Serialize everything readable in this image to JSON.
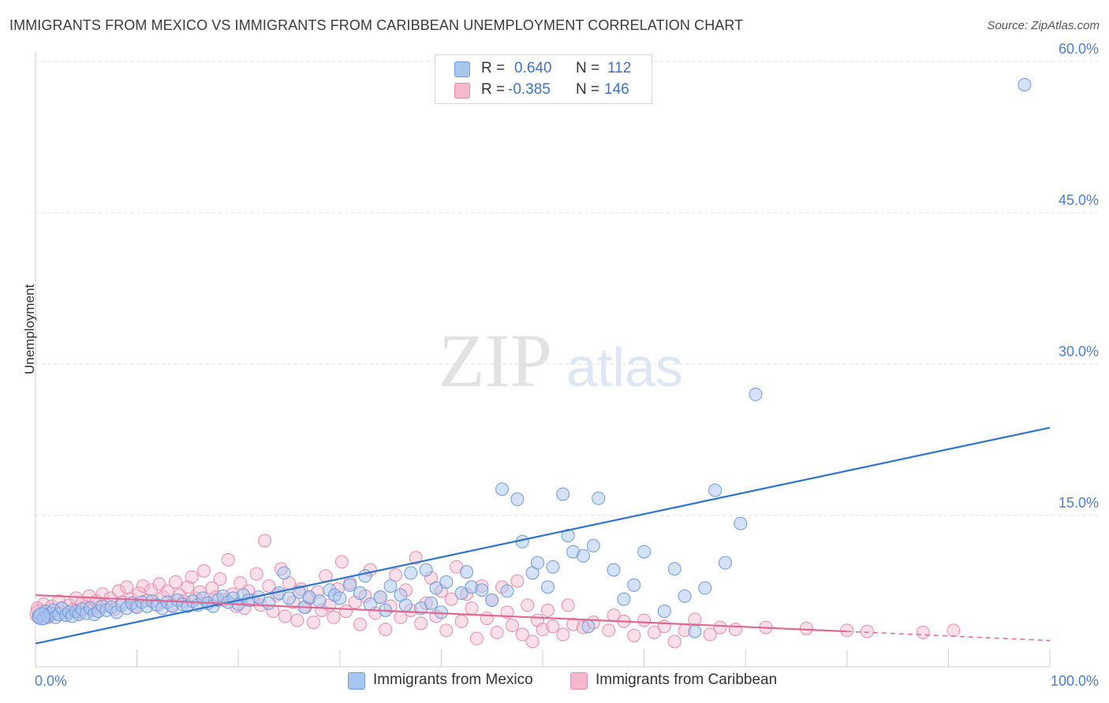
{
  "title": "IMMIGRANTS FROM MEXICO VS IMMIGRANTS FROM CARIBBEAN UNEMPLOYMENT CORRELATION CHART",
  "source": "Source: ZipAtlas.com",
  "watermark": {
    "zip": "ZIP",
    "atlas": "atlas"
  },
  "legend": {
    "mexico": {
      "r_label": "R =",
      "r_value": "0.640",
      "n_label": "N =",
      "n_value": "112",
      "color": "#a9c6ef"
    },
    "caribbean": {
      "r_label": "R =",
      "r_value": "-0.385",
      "n_label": "N =",
      "n_value": "146",
      "color": "#f6b8cc"
    }
  },
  "bottom_legend": {
    "mexico": "Immigrants from Mexico",
    "caribbean": "Immigrants from Caribbean"
  },
  "colors": {
    "mexico_fill": "#a9c6ef",
    "mexico_line": "#2f73d0",
    "caribbean_fill": "#f6b8cc",
    "caribbean_line": "#e06890",
    "axis_text": "#4a7fd0"
  },
  "chart_data": {
    "type": "scatter",
    "title": "IMMIGRANTS FROM MEXICO VS IMMIGRANTS FROM CARIBBEAN UNEMPLOYMENT CORRELATION CHART",
    "xlabel": "",
    "ylabel": "Unemployment",
    "xlim": [
      0,
      100
    ],
    "ylim": [
      0,
      60
    ],
    "x_tick_labels": [
      "0.0%",
      "100.0%"
    ],
    "y_ticks": [
      15,
      30,
      45,
      60
    ],
    "y_tick_labels": [
      "15.0%",
      "30.0%",
      "45.0%",
      "60.0%"
    ],
    "series": [
      {
        "name": "Immigrants from Mexico",
        "trend": {
          "x": [
            0,
            100
          ],
          "y": [
            2.3,
            23.7
          ]
        },
        "points": [
          [
            0.3,
            5.0
          ],
          [
            0.5,
            5.2
          ],
          [
            0.8,
            4.8
          ],
          [
            1.0,
            5.5
          ],
          [
            1.2,
            5.0
          ],
          [
            1.5,
            5.3
          ],
          [
            1.8,
            5.6
          ],
          [
            2.0,
            4.9
          ],
          [
            2.3,
            5.2
          ],
          [
            2.6,
            5.8
          ],
          [
            3.0,
            5.1
          ],
          [
            3.3,
            5.4
          ],
          [
            3.6,
            5.0
          ],
          [
            4.0,
            5.5
          ],
          [
            4.3,
            5.2
          ],
          [
            4.6,
            5.7
          ],
          [
            5.0,
            5.3
          ],
          [
            5.4,
            5.8
          ],
          [
            5.8,
            5.2
          ],
          [
            6.2,
            5.5
          ],
          [
            6.6,
            6.0
          ],
          [
            7.0,
            5.6
          ],
          [
            7.5,
            5.9
          ],
          [
            8.0,
            5.4
          ],
          [
            8.5,
            6.1
          ],
          [
            9.0,
            5.8
          ],
          [
            9.5,
            6.3
          ],
          [
            10.0,
            5.9
          ],
          [
            10.5,
            6.4
          ],
          [
            11.0,
            6.0
          ],
          [
            11.5,
            6.5
          ],
          [
            12.0,
            6.1
          ],
          [
            12.5,
            5.8
          ],
          [
            13.0,
            6.4
          ],
          [
            13.5,
            6.0
          ],
          [
            14.0,
            6.6
          ],
          [
            14.5,
            6.2
          ],
          [
            15.0,
            6.0
          ],
          [
            15.5,
            6.5
          ],
          [
            16.0,
            6.1
          ],
          [
            16.5,
            6.8
          ],
          [
            17.0,
            6.3
          ],
          [
            17.5,
            6.0
          ],
          [
            18.0,
            6.6
          ],
          [
            18.5,
            7.0
          ],
          [
            19.0,
            6.4
          ],
          [
            19.5,
            6.8
          ],
          [
            20.0,
            6.2
          ],
          [
            20.5,
            7.1
          ],
          [
            21.0,
            6.6
          ],
          [
            22.0,
            6.9
          ],
          [
            23.0,
            6.3
          ],
          [
            24.0,
            7.3
          ],
          [
            24.5,
            9.3
          ],
          [
            25.0,
            6.8
          ],
          [
            26.0,
            7.4
          ],
          [
            26.5,
            5.9
          ],
          [
            27.0,
            6.9
          ],
          [
            28.0,
            6.5
          ],
          [
            29.0,
            7.6
          ],
          [
            29.5,
            7.1
          ],
          [
            30.0,
            6.8
          ],
          [
            31.0,
            8.1
          ],
          [
            32.0,
            7.3
          ],
          [
            32.5,
            9.0
          ],
          [
            33.0,
            6.2
          ],
          [
            34.0,
            6.9
          ],
          [
            34.5,
            5.6
          ],
          [
            35.0,
            8.0
          ],
          [
            36.0,
            7.1
          ],
          [
            36.5,
            6.1
          ],
          [
            37.0,
            9.3
          ],
          [
            38.0,
            5.8
          ],
          [
            38.5,
            9.6
          ],
          [
            39.0,
            6.3
          ],
          [
            39.5,
            7.8
          ],
          [
            40.0,
            5.4
          ],
          [
            40.5,
            8.4
          ],
          [
            42.0,
            7.3
          ],
          [
            42.5,
            9.4
          ],
          [
            43.0,
            7.9
          ],
          [
            44.0,
            7.6
          ],
          [
            45.0,
            6.6
          ],
          [
            46.0,
            17.6
          ],
          [
            46.5,
            7.5
          ],
          [
            47.5,
            16.6
          ],
          [
            48.0,
            12.4
          ],
          [
            49.0,
            9.3
          ],
          [
            49.5,
            10.3
          ],
          [
            50.5,
            7.9
          ],
          [
            51.0,
            9.9
          ],
          [
            52.0,
            17.1
          ],
          [
            52.5,
            13.0
          ],
          [
            53.0,
            11.4
          ],
          [
            54.0,
            11.0
          ],
          [
            54.5,
            4.0
          ],
          [
            55.0,
            12.0
          ],
          [
            55.5,
            16.7
          ],
          [
            57.0,
            9.6
          ],
          [
            58.0,
            6.7
          ],
          [
            59.0,
            8.1
          ],
          [
            60.0,
            11.4
          ],
          [
            62.0,
            5.5
          ],
          [
            63.0,
            9.7
          ],
          [
            64.0,
            7.0
          ],
          [
            65.0,
            3.5
          ],
          [
            66.0,
            7.8
          ],
          [
            67.0,
            17.5
          ],
          [
            68.0,
            10.3
          ],
          [
            69.5,
            14.2
          ],
          [
            71.0,
            27.0
          ],
          [
            97.5,
            57.7
          ]
        ]
      },
      {
        "name": "Immigrants from Caribbean",
        "trend": {
          "x": [
            0,
            80
          ],
          "y": [
            7.1,
            3.5
          ]
        },
        "trend_dashed": {
          "x": [
            80,
            100
          ],
          "y": [
            3.5,
            2.6
          ]
        },
        "points": [
          [
            0.2,
            5.8
          ],
          [
            0.5,
            5.0
          ],
          [
            0.8,
            6.2
          ],
          [
            1.0,
            5.5
          ],
          [
            1.3,
            4.9
          ],
          [
            1.6,
            6.0
          ],
          [
            2.0,
            5.3
          ],
          [
            2.3,
            6.5
          ],
          [
            2.6,
            5.8
          ],
          [
            3.0,
            5.1
          ],
          [
            3.3,
            6.1
          ],
          [
            3.6,
            5.6
          ],
          [
            4.0,
            6.8
          ],
          [
            4.3,
            5.4
          ],
          [
            4.6,
            6.3
          ],
          [
            5.0,
            5.9
          ],
          [
            5.3,
            7.0
          ],
          [
            5.6,
            5.6
          ],
          [
            6.0,
            6.5
          ],
          [
            6.3,
            5.9
          ],
          [
            6.6,
            7.2
          ],
          [
            7.0,
            6.1
          ],
          [
            7.4,
            6.8
          ],
          [
            7.8,
            5.7
          ],
          [
            8.2,
            7.5
          ],
          [
            8.6,
            6.4
          ],
          [
            9.0,
            7.9
          ],
          [
            9.4,
            6.7
          ],
          [
            9.8,
            6.0
          ],
          [
            10.2,
            7.3
          ],
          [
            10.6,
            8.0
          ],
          [
            11.0,
            6.6
          ],
          [
            11.4,
            7.6
          ],
          [
            11.8,
            6.2
          ],
          [
            12.2,
            8.2
          ],
          [
            12.6,
            6.9
          ],
          [
            13.0,
            7.5
          ],
          [
            13.4,
            6.1
          ],
          [
            13.8,
            8.4
          ],
          [
            14.2,
            7.1
          ],
          [
            14.6,
            6.5
          ],
          [
            15.0,
            7.9
          ],
          [
            15.4,
            8.9
          ],
          [
            15.8,
            6.8
          ],
          [
            16.2,
            7.4
          ],
          [
            16.6,
            9.5
          ],
          [
            17.0,
            6.3
          ],
          [
            17.4,
            7.8
          ],
          [
            17.8,
            6.9
          ],
          [
            18.2,
            8.7
          ],
          [
            18.6,
            6.6
          ],
          [
            19.0,
            10.6
          ],
          [
            19.4,
            7.2
          ],
          [
            19.8,
            6.0
          ],
          [
            20.2,
            8.3
          ],
          [
            20.6,
            5.8
          ],
          [
            21.0,
            7.5
          ],
          [
            21.4,
            6.6
          ],
          [
            21.8,
            9.2
          ],
          [
            22.2,
            6.1
          ],
          [
            22.6,
            12.5
          ],
          [
            23.0,
            8.0
          ],
          [
            23.4,
            5.5
          ],
          [
            23.8,
            7.1
          ],
          [
            24.2,
            9.7
          ],
          [
            24.6,
            5.0
          ],
          [
            25.0,
            8.3
          ],
          [
            25.4,
            6.4
          ],
          [
            25.8,
            4.6
          ],
          [
            26.2,
            7.7
          ],
          [
            26.6,
            5.9
          ],
          [
            27.0,
            6.8
          ],
          [
            27.4,
            4.4
          ],
          [
            27.8,
            7.4
          ],
          [
            28.2,
            5.6
          ],
          [
            28.6,
            9.0
          ],
          [
            29.0,
            6.1
          ],
          [
            29.4,
            4.9
          ],
          [
            29.8,
            7.7
          ],
          [
            30.2,
            10.4
          ],
          [
            30.6,
            5.5
          ],
          [
            31.0,
            8.3
          ],
          [
            31.5,
            6.4
          ],
          [
            32.0,
            4.2
          ],
          [
            32.5,
            7.0
          ],
          [
            33.0,
            9.6
          ],
          [
            33.5,
            5.3
          ],
          [
            34.0,
            6.9
          ],
          [
            34.5,
            3.7
          ],
          [
            35.0,
            6.0
          ],
          [
            35.5,
            9.1
          ],
          [
            36.0,
            4.9
          ],
          [
            36.5,
            7.6
          ],
          [
            37.0,
            5.6
          ],
          [
            37.5,
            10.8
          ],
          [
            38.0,
            4.3
          ],
          [
            38.5,
            6.3
          ],
          [
            39.0,
            8.8
          ],
          [
            39.5,
            5.0
          ],
          [
            40.0,
            7.5
          ],
          [
            40.5,
            3.6
          ],
          [
            41.0,
            6.7
          ],
          [
            41.5,
            9.9
          ],
          [
            42.0,
            4.5
          ],
          [
            42.5,
            7.2
          ],
          [
            43.0,
            5.8
          ],
          [
            43.5,
            2.8
          ],
          [
            44.0,
            8.0
          ],
          [
            44.5,
            4.8
          ],
          [
            45.0,
            6.6
          ],
          [
            45.5,
            3.4
          ],
          [
            46.0,
            7.9
          ],
          [
            46.5,
            5.4
          ],
          [
            47.0,
            4.1
          ],
          [
            47.5,
            8.5
          ],
          [
            48.0,
            3.2
          ],
          [
            48.5,
            6.1
          ],
          [
            49.0,
            2.5
          ],
          [
            49.5,
            4.6
          ],
          [
            50.0,
            3.7
          ],
          [
            50.5,
            5.6
          ],
          [
            51.0,
            4.0
          ],
          [
            52.0,
            3.2
          ],
          [
            52.5,
            6.1
          ],
          [
            53.0,
            4.2
          ],
          [
            54.0,
            3.9
          ],
          [
            55.0,
            4.4
          ],
          [
            56.5,
            3.6
          ],
          [
            57.0,
            5.1
          ],
          [
            58.0,
            4.5
          ],
          [
            59.0,
            3.1
          ],
          [
            60.0,
            4.6
          ],
          [
            61.0,
            3.4
          ],
          [
            62.0,
            4.0
          ],
          [
            63.0,
            2.5
          ],
          [
            64.0,
            3.6
          ],
          [
            65.0,
            4.7
          ],
          [
            66.5,
            3.2
          ],
          [
            67.5,
            3.9
          ],
          [
            69.0,
            3.7
          ],
          [
            72.0,
            3.9
          ],
          [
            76.0,
            3.8
          ],
          [
            80.0,
            3.6
          ],
          [
            82.0,
            3.5
          ],
          [
            87.5,
            3.4
          ],
          [
            90.5,
            3.6
          ]
        ]
      }
    ]
  }
}
